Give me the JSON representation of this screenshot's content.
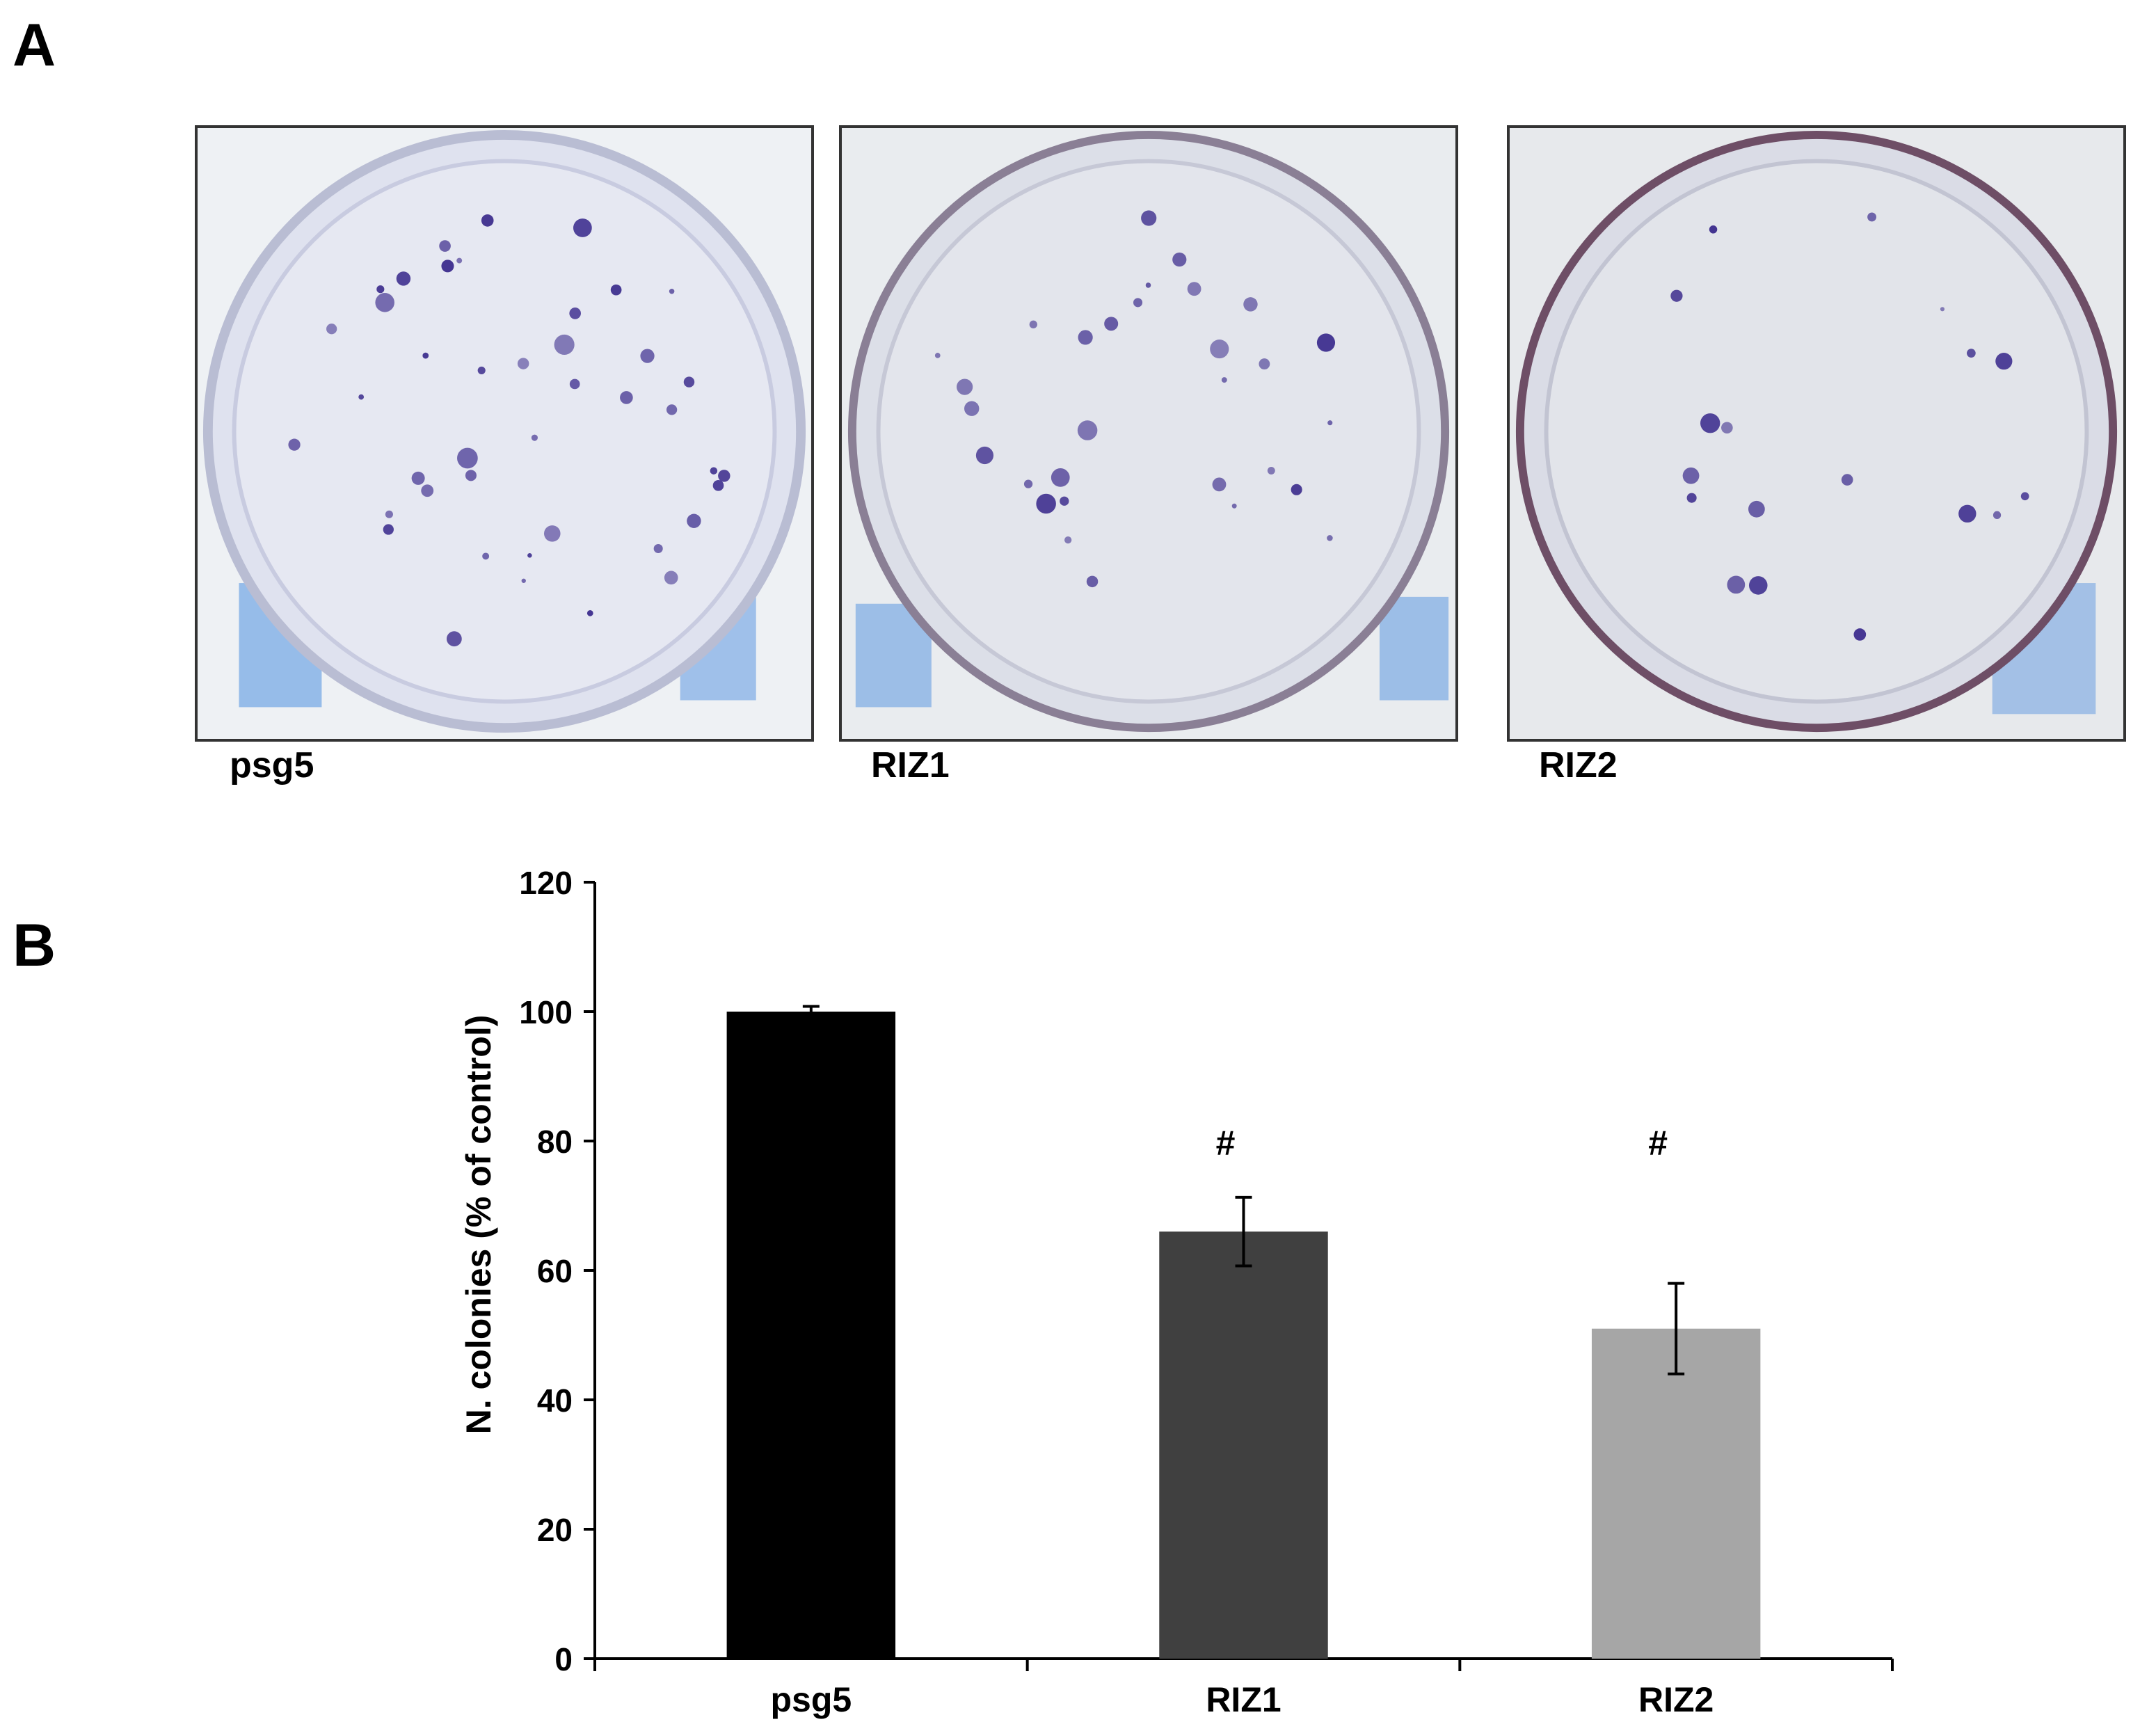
{
  "panels": {
    "a_letter": "A",
    "b_letter": "B"
  },
  "photos": [
    {
      "label": "psg5",
      "plate_tint": "#d9dcef",
      "background": "#eef1f4",
      "marker_color": "#4f8fe0"
    },
    {
      "label": "RIZ1",
      "plate_tint": "#d8dbe8",
      "background": "#e9ecef",
      "marker_color": "#4f8fe0"
    },
    {
      "label": "RIZ2",
      "plate_tint": "#d6d9e6",
      "background": "#e7e9ec",
      "marker_color": "#4f8fe0"
    }
  ],
  "colony_color": "#3a2a8c",
  "chart_data": {
    "type": "bar",
    "title": "",
    "xlabel": "",
    "ylabel": "N. colonies (% of control)",
    "categories": [
      "psg5",
      "RIZ1",
      "RIZ2"
    ],
    "values": [
      100,
      66,
      51
    ],
    "errors": [
      0.8,
      5.3,
      7.0
    ],
    "annotations": [
      "",
      "#",
      "#"
    ],
    "colors": [
      "#000000",
      "#404040",
      "#a6a6a6"
    ],
    "ylim": [
      0,
      120
    ],
    "yticks": [
      0,
      20,
      40,
      60,
      80,
      100,
      120
    ],
    "grid": false,
    "legend": "none"
  }
}
